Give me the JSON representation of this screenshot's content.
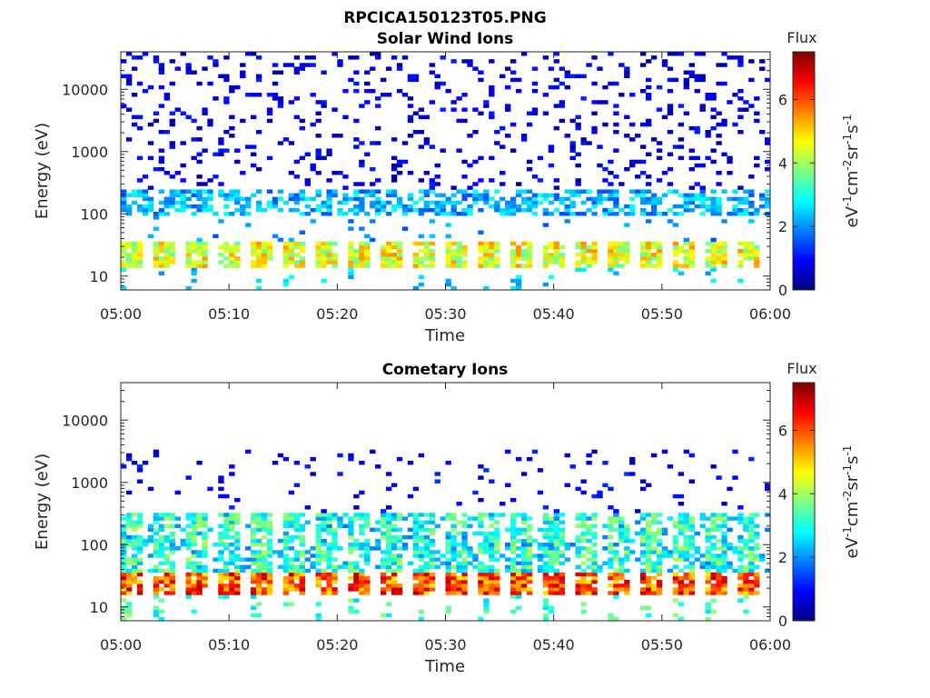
{
  "figure": {
    "title": "RPCICA150123T05.PNG"
  },
  "chart_data": [
    {
      "type": "heatmap",
      "title": "Solar Wind Ions",
      "xlabel": "Time",
      "ylabel": "Energy (eV)",
      "xlim": [
        "05:00",
        "06:00"
      ],
      "x_ticks": [
        "05:00",
        "05:10",
        "05:20",
        "05:30",
        "05:40",
        "05:50",
        "06:00"
      ],
      "y_scale": "log",
      "ylim": [
        6,
        40000
      ],
      "y_ticks": [
        "10",
        "100",
        "1000",
        "10000"
      ],
      "y_tick_values": [
        10,
        100,
        1000,
        10000
      ],
      "colorbar": {
        "label": "Flux",
        "units": "eV-1cm-2sr-1s-1",
        "range": [
          0,
          7.5
        ],
        "ticks": [
          "0",
          "2",
          "4",
          "6"
        ],
        "tick_values": [
          0,
          2,
          4,
          6
        ],
        "colormap": "jet"
      },
      "description_bands": [
        {
          "energy_range_eV": [
            14,
            35
          ],
          "flux_range": [
            3.5,
            5.5
          ]
        },
        {
          "energy_range_eV": [
            100,
            250
          ],
          "flux_range": [
            1.5,
            3.0
          ]
        },
        {
          "energy_range_eV": [
            300,
            40000
          ],
          "flux_range": [
            0.2,
            1.2
          ]
        }
      ],
      "scan_period_minutes": 3
    },
    {
      "type": "heatmap",
      "title": "Cometary Ions",
      "xlabel": "Time",
      "ylabel": "Energy (eV)",
      "xlim": [
        "05:00",
        "06:00"
      ],
      "x_ticks": [
        "05:00",
        "05:10",
        "05:20",
        "05:30",
        "05:40",
        "05:50",
        "06:00"
      ],
      "y_scale": "log",
      "ylim": [
        6,
        40000
      ],
      "y_ticks": [
        "10",
        "100",
        "1000",
        "10000"
      ],
      "y_tick_values": [
        10,
        100,
        1000,
        10000
      ],
      "colorbar": {
        "label": "Flux",
        "units": "eV-1cm-2sr-1s-1",
        "range": [
          0,
          7.5
        ],
        "ticks": [
          "0",
          "2",
          "4",
          "6"
        ],
        "tick_values": [
          0,
          2,
          4,
          6
        ],
        "colormap": "jet"
      },
      "description_bands": [
        {
          "energy_range_eV": [
            16,
            35
          ],
          "flux_range": [
            5.0,
            7.0
          ]
        },
        {
          "energy_range_eV": [
            40,
            300
          ],
          "flux_range": [
            2.5,
            4.0
          ]
        },
        {
          "energy_range_eV": [
            300,
            3000
          ],
          "flux_range": [
            0.5,
            1.2
          ]
        }
      ],
      "scan_period_minutes": 3
    }
  ]
}
